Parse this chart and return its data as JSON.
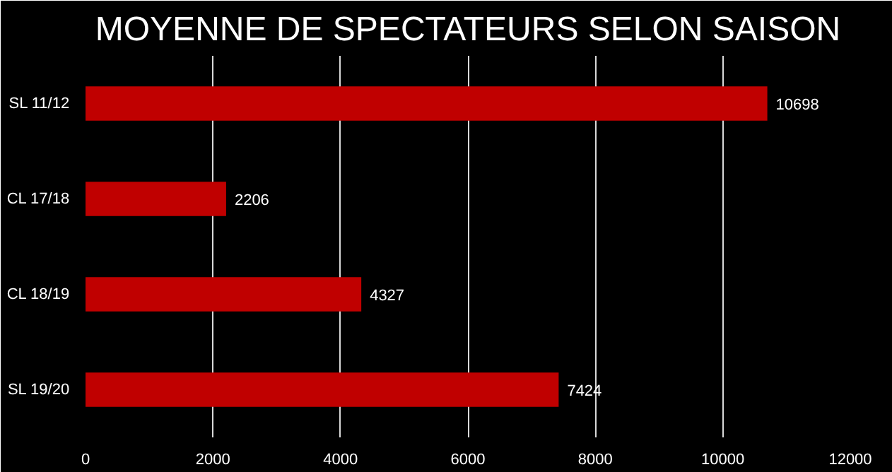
{
  "chart_data": {
    "type": "bar",
    "orientation": "horizontal",
    "title": "MOYENNE DE SPECTATEURS SELON SAISON",
    "categories": [
      "SL 11/12",
      "CL 17/18",
      "CL 18/19",
      "SL 19/20"
    ],
    "values": [
      10698,
      2206,
      4327,
      7424
    ],
    "color": "#c00000",
    "xlim": [
      0,
      12000
    ],
    "xticks": [
      0,
      2000,
      4000,
      6000,
      8000,
      10000,
      12000
    ],
    "grid": "x",
    "data_labels": true
  }
}
